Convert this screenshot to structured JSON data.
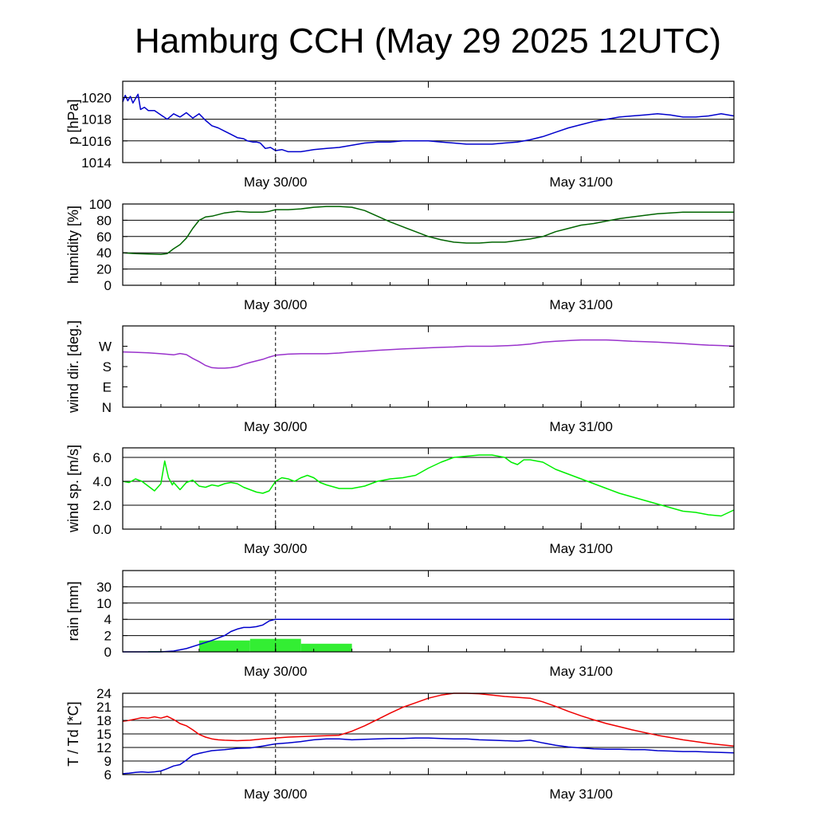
{
  "title": "Hamburg CCH (May 29 2025 12UTC)",
  "colors": {
    "pressure": "#0000cc",
    "humidity": "#006400",
    "wind_dir": "#9932cc",
    "wind_speed": "#00ee00",
    "rain_bar": "#33ee33",
    "rain_line": "#0000cc",
    "temperature": "#ee0000",
    "dewpoint": "#0000cc"
  },
  "chart_data": [
    {
      "type": "line",
      "id": "pressure",
      "ylabel": "p [hPa]",
      "ylim": [
        1014,
        1021.5
      ],
      "yticks": [
        1014,
        1016,
        1018,
        1020
      ],
      "ytick_labels": [
        "1014",
        "1016",
        "1018",
        "1020"
      ],
      "gridlines": [
        1016,
        1018,
        1020
      ],
      "xlim": [
        -12,
        36
      ],
      "xtick_labels": [
        {
          "x": 0,
          "label": "May 30/00"
        },
        {
          "x": 24,
          "label": "May 31/00"
        }
      ],
      "series": [
        {
          "color_key": "pressure",
          "x": [
            -12,
            -11.8,
            -11.6,
            -11.4,
            -11.2,
            -11,
            -10.8,
            -10.6,
            -10.3,
            -10,
            -9.5,
            -9,
            -8.5,
            -8,
            -7.5,
            -7,
            -6.5,
            -6,
            -5.5,
            -5,
            -4.5,
            -4,
            -3.5,
            -3,
            -2.5,
            -2.2,
            -1.8,
            -1.5,
            -1.2,
            -0.8,
            -0.4,
            0,
            0.5,
            1,
            2,
            3,
            4,
            5,
            6,
            7,
            8,
            9,
            10,
            11,
            12,
            13,
            14,
            15,
            16,
            17,
            18,
            19,
            20,
            21,
            22,
            23,
            24,
            25,
            26,
            27,
            28,
            29,
            30,
            31,
            32,
            33,
            34,
            35,
            36
          ],
          "y": [
            1019.6,
            1020.2,
            1019.7,
            1020.1,
            1019.5,
            1019.9,
            1020.3,
            1018.9,
            1019.1,
            1018.8,
            1018.8,
            1018.4,
            1018.0,
            1018.5,
            1018.2,
            1018.6,
            1018.1,
            1018.5,
            1017.9,
            1017.4,
            1017.2,
            1016.9,
            1016.6,
            1016.3,
            1016.2,
            1016.0,
            1015.9,
            1015.9,
            1015.8,
            1015.3,
            1015.4,
            1015.1,
            1015.2,
            1015.0,
            1015.0,
            1015.2,
            1015.3,
            1015.4,
            1015.6,
            1015.8,
            1015.9,
            1015.9,
            1016.0,
            1016.0,
            1016.0,
            1015.9,
            1015.8,
            1015.7,
            1015.7,
            1015.7,
            1015.8,
            1015.9,
            1016.1,
            1016.4,
            1016.8,
            1017.2,
            1017.5,
            1017.8,
            1018.0,
            1018.2,
            1018.3,
            1018.4,
            1018.5,
            1018.4,
            1018.2,
            1018.2,
            1018.3,
            1018.5,
            1018.3
          ]
        }
      ]
    },
    {
      "type": "line",
      "id": "humidity",
      "ylabel": "humidity [%]",
      "ylim": [
        0,
        100
      ],
      "yticks": [
        0,
        20,
        40,
        60,
        80,
        100
      ],
      "ytick_labels": [
        "0",
        "20",
        "40",
        "60",
        "80",
        "100"
      ],
      "gridlines": [
        20,
        40,
        60,
        80
      ],
      "xlim": [
        -12,
        36
      ],
      "xtick_labels": [
        {
          "x": 0,
          "label": "May 30/00"
        },
        {
          "x": 24,
          "label": "May 31/00"
        }
      ],
      "series": [
        {
          "color_key": "humidity",
          "x": [
            -12,
            -11,
            -10,
            -9,
            -8.5,
            -8,
            -7.5,
            -7,
            -6.5,
            -6,
            -5.5,
            -5,
            -4.5,
            -4,
            -3,
            -2,
            -1,
            -0.5,
            0,
            1,
            2,
            3,
            4,
            5,
            6,
            7,
            8,
            9,
            10,
            11,
            12,
            13,
            14,
            15,
            16,
            17,
            18,
            19,
            20,
            21,
            22,
            23,
            24,
            25,
            26,
            27,
            28,
            29,
            30,
            31,
            32,
            33,
            34,
            35,
            36
          ],
          "y": [
            40,
            39,
            38.5,
            38,
            39,
            45,
            50,
            58,
            70,
            80,
            84,
            85,
            87,
            89,
            91,
            90,
            90,
            91,
            93,
            93,
            94,
            96,
            97,
            97,
            96,
            92,
            85,
            78,
            72,
            66,
            60,
            56,
            53,
            52,
            52,
            53,
            53,
            55,
            57,
            60,
            66,
            70,
            74,
            76,
            79,
            82,
            84,
            86,
            88,
            89,
            90,
            90,
            90,
            90,
            90
          ]
        }
      ]
    },
    {
      "type": "line",
      "id": "wind_dir",
      "ylabel": "wind dir. [deg.]",
      "ylim": [
        0,
        360
      ],
      "yticks": [
        0,
        90,
        180,
        270
      ],
      "ytick_labels": [
        "N",
        "E",
        "S",
        "W"
      ],
      "gridlines": [],
      "xlim": [
        -12,
        36
      ],
      "xtick_labels": [
        {
          "x": 0,
          "label": "May 30/00"
        },
        {
          "x": 24,
          "label": "May 31/00"
        }
      ],
      "series": [
        {
          "color_key": "wind_dir",
          "x": [
            -12,
            -11,
            -10,
            -9,
            -8,
            -7.5,
            -7,
            -6.5,
            -6,
            -5.5,
            -5,
            -4.5,
            -4,
            -3.5,
            -3,
            -2.5,
            -2,
            -1.5,
            -1,
            -0.5,
            0,
            1,
            2,
            3,
            4,
            5,
            6,
            7,
            8,
            9,
            10,
            11,
            12,
            13,
            14,
            15,
            16,
            17,
            18,
            19,
            20,
            21,
            22,
            23,
            24,
            25,
            26,
            27,
            28,
            29,
            30,
            31,
            32,
            33,
            34,
            35,
            36
          ],
          "y": [
            245,
            243,
            241,
            237,
            232,
            238,
            233,
            216,
            202,
            185,
            175,
            173,
            173,
            175,
            180,
            190,
            198,
            205,
            212,
            222,
            230,
            235,
            237,
            237,
            237,
            240,
            245,
            248,
            252,
            255,
            258,
            260,
            263,
            265,
            267,
            270,
            270,
            270,
            272,
            275,
            280,
            288,
            292,
            295,
            298,
            298,
            298,
            295,
            292,
            290,
            288,
            285,
            282,
            278,
            275,
            273,
            270
          ]
        }
      ]
    },
    {
      "type": "line",
      "id": "wind_speed",
      "ylabel": "wind sp. [m/s]",
      "ylim": [
        0,
        6.8
      ],
      "yticks": [
        0,
        2,
        4,
        6
      ],
      "ytick_labels": [
        "0.0",
        "2.0",
        "4.0",
        "6.0"
      ],
      "gridlines": [
        2,
        4,
        6
      ],
      "xlim": [
        -12,
        36
      ],
      "xtick_labels": [
        {
          "x": 0,
          "label": "May 30/00"
        },
        {
          "x": 24,
          "label": "May 31/00"
        }
      ],
      "series": [
        {
          "color_key": "wind_speed",
          "x": [
            -12,
            -11.5,
            -11,
            -10.5,
            -10,
            -9.5,
            -9,
            -8.7,
            -8.4,
            -8.1,
            -8,
            -7.5,
            -7,
            -6.5,
            -6,
            -5.5,
            -5,
            -4.5,
            -4,
            -3.5,
            -3,
            -2.5,
            -2,
            -1.5,
            -1,
            -0.5,
            0,
            0.5,
            1,
            1.5,
            2,
            2.5,
            3,
            3.5,
            4,
            5,
            6,
            7,
            8,
            9,
            10,
            11,
            12,
            13,
            14,
            15,
            16,
            17,
            18,
            18.5,
            19,
            19.5,
            20,
            21,
            22,
            23,
            24,
            25,
            26,
            27,
            28,
            29,
            30,
            31,
            32,
            33,
            34,
            35,
            36
          ],
          "y": [
            4.0,
            3.9,
            4.2,
            4.0,
            3.6,
            3.2,
            3.8,
            5.7,
            4.3,
            3.7,
            3.9,
            3.3,
            3.9,
            4.1,
            3.6,
            3.5,
            3.7,
            3.6,
            3.8,
            3.9,
            3.8,
            3.5,
            3.3,
            3.1,
            3.0,
            3.2,
            4.0,
            4.3,
            4.2,
            4.0,
            4.3,
            4.5,
            4.3,
            3.9,
            3.7,
            3.4,
            3.4,
            3.6,
            4.0,
            4.2,
            4.3,
            4.5,
            5.1,
            5.6,
            6.0,
            6.1,
            6.2,
            6.2,
            6.0,
            5.6,
            5.4,
            5.8,
            5.8,
            5.6,
            5.0,
            4.6,
            4.2,
            3.8,
            3.4,
            3.0,
            2.7,
            2.4,
            2.1,
            1.8,
            1.5,
            1.4,
            1.2,
            1.1,
            1.6
          ]
        }
      ]
    },
    {
      "type": "bar+line",
      "id": "rain",
      "ylabel": "rain [mm]",
      "ylim_display": [
        0,
        5
      ],
      "yticks_display": [
        0,
        1,
        2,
        3,
        4,
        5
      ],
      "ytick_labels": [
        "0",
        "2",
        "4",
        "10",
        "30",
        ""
      ],
      "gridlines_display": [
        1,
        2,
        3,
        4
      ],
      "xlim": [
        -12,
        36
      ],
      "xtick_labels": [
        {
          "x": 0,
          "label": "May 30/00"
        },
        {
          "x": 24,
          "label": "May 31/00"
        }
      ],
      "bars": {
        "color_key": "rain_bar",
        "bins": [
          [
            -10,
            -8
          ],
          [
            -6,
            -2
          ],
          [
            -2,
            2
          ],
          [
            2,
            6
          ]
        ],
        "values": [
          0.1,
          1.4,
          1.6,
          1.0
        ]
      },
      "series": [
        {
          "color_key": "rain_line",
          "x": [
            -12,
            -9,
            -8,
            -7,
            -6,
            -5,
            -4,
            -3.5,
            -3,
            -2.5,
            -2,
            -1.5,
            -1,
            -0.5,
            0,
            2,
            4,
            36
          ],
          "y": [
            0,
            0,
            0.1,
            0.4,
            0.9,
            1.4,
            2.0,
            2.5,
            2.8,
            3.0,
            3.0,
            3.1,
            3.3,
            3.8,
            4.0,
            4.0,
            4.0,
            4.0
          ]
        }
      ]
    },
    {
      "type": "line",
      "id": "temperature_dewpoint",
      "ylabel": "T / Td [*C]",
      "ylim": [
        6,
        24
      ],
      "yticks": [
        6,
        9,
        12,
        15,
        18,
        21,
        24
      ],
      "ytick_labels": [
        "6",
        "9",
        "12",
        "15",
        "18",
        "21",
        "24"
      ],
      "gridlines": [
        9,
        12,
        15,
        18,
        21
      ],
      "xlim": [
        -12,
        36
      ],
      "xtick_labels": [
        {
          "x": 0,
          "label": "May 30/00"
        },
        {
          "x": 24,
          "label": "May 31/00"
        }
      ],
      "series": [
        {
          "color_key": "temperature",
          "x": [
            -12,
            -11.5,
            -11,
            -10.5,
            -10,
            -9.5,
            -9,
            -8.5,
            -8,
            -7.5,
            -7,
            -6.5,
            -6,
            -5.5,
            -5,
            -4.5,
            -4,
            -3,
            -2,
            -1,
            0,
            1,
            2,
            3,
            4,
            5,
            6,
            7,
            8,
            9,
            10,
            11,
            12,
            13,
            14,
            15,
            16,
            17,
            18,
            19,
            20,
            21,
            22,
            23,
            24,
            25,
            26,
            27,
            28,
            29,
            30,
            31,
            32,
            33,
            34,
            35,
            36
          ],
          "y": [
            17.8,
            18.0,
            18.3,
            18.6,
            18.5,
            18.8,
            18.5,
            18.9,
            18.2,
            17.3,
            16.8,
            15.9,
            14.9,
            14.3,
            13.9,
            13.7,
            13.6,
            13.5,
            13.6,
            13.9,
            14.1,
            14.3,
            14.4,
            14.5,
            14.6,
            14.7,
            15.6,
            16.8,
            18.2,
            19.6,
            20.9,
            21.9,
            22.9,
            23.6,
            24.0,
            24.0,
            23.9,
            23.6,
            23.3,
            23.1,
            22.9,
            22.1,
            21.1,
            20.0,
            19.0,
            18.1,
            17.3,
            16.6,
            15.9,
            15.3,
            14.7,
            14.2,
            13.7,
            13.3,
            12.9,
            12.6,
            12.3
          ]
        },
        {
          "color_key": "dewpoint",
          "x": [
            -12,
            -11.5,
            -11,
            -10.5,
            -10,
            -9.5,
            -9,
            -8.5,
            -8,
            -7.5,
            -7,
            -6.5,
            -6,
            -5.5,
            -5,
            -4.5,
            -4,
            -3,
            -2,
            -1,
            0,
            1,
            2,
            3,
            4,
            5,
            6,
            7,
            8,
            9,
            10,
            11,
            12,
            13,
            14,
            15,
            16,
            17,
            18,
            19,
            20,
            21,
            22,
            23,
            24,
            25,
            26,
            27,
            28,
            29,
            30,
            31,
            32,
            33,
            34,
            35,
            36
          ],
          "y": [
            6.2,
            6.3,
            6.5,
            6.6,
            6.5,
            6.6,
            6.8,
            7.3,
            7.9,
            8.2,
            9.2,
            10.3,
            10.7,
            11.0,
            11.3,
            11.4,
            11.5,
            11.8,
            11.9,
            12.3,
            12.8,
            13.0,
            13.3,
            13.7,
            13.9,
            13.9,
            13.7,
            13.8,
            13.9,
            14.0,
            14.0,
            14.1,
            14.1,
            14.0,
            13.9,
            13.9,
            13.7,
            13.6,
            13.5,
            13.4,
            13.6,
            13.0,
            12.5,
            12.1,
            11.9,
            11.7,
            11.6,
            11.6,
            11.5,
            11.5,
            11.3,
            11.2,
            11.1,
            11.1,
            11.0,
            10.9,
            10.8
          ]
        }
      ]
    }
  ]
}
